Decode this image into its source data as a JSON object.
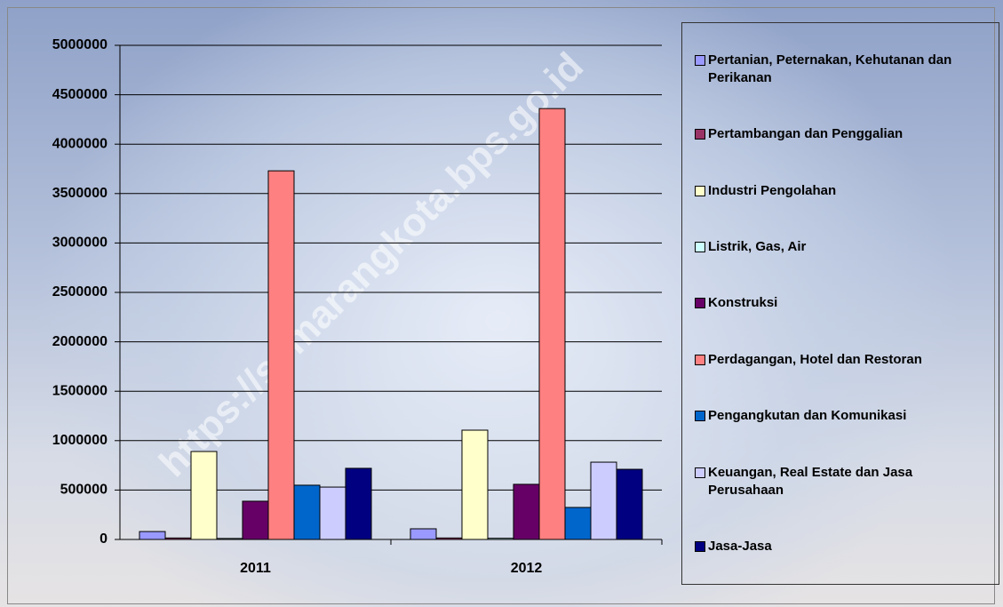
{
  "chart_data": {
    "type": "bar",
    "watermark": "https://semarangkota.bps.go.id",
    "categories": [
      "2011",
      "2012"
    ],
    "series": [
      {
        "name": "Pertanian, Peternakan, Kehutanan dan Perikanan",
        "color": "#9999ff",
        "values": [
          80000,
          108000
        ]
      },
      {
        "name": "Pertambangan dan Penggalian",
        "color": "#993366",
        "values": [
          15000,
          15000
        ]
      },
      {
        "name": "Industri Pengolahan",
        "color": "#ffffcc",
        "values": [
          890000,
          1106000
        ]
      },
      {
        "name": "Listrik, Gas, Air",
        "color": "#ccffff",
        "values": [
          10000,
          12000
        ]
      },
      {
        "name": "Konstruksi",
        "color": "#660066",
        "values": [
          387000,
          558000
        ]
      },
      {
        "name": "Perdagangan, Hotel dan Restoran",
        "color": "#ff8080",
        "values": [
          3730000,
          4360000
        ]
      },
      {
        "name": "Pengangkutan dan Komunikasi",
        "color": "#0066cc",
        "values": [
          549000,
          324000
        ]
      },
      {
        "name": "Keuangan, Real Estate dan Jasa Perusahaan",
        "color": "#ccccff",
        "values": [
          530000,
          782000
        ]
      },
      {
        "name": "Jasa-Jasa",
        "color": "#000080",
        "values": [
          720000,
          710000
        ]
      }
    ],
    "ylim": [
      0,
      5000000
    ],
    "yticks": [
      0,
      500000,
      1000000,
      1500000,
      2000000,
      2500000,
      3000000,
      3500000,
      4000000,
      4500000,
      5000000
    ],
    "grid": true
  }
}
